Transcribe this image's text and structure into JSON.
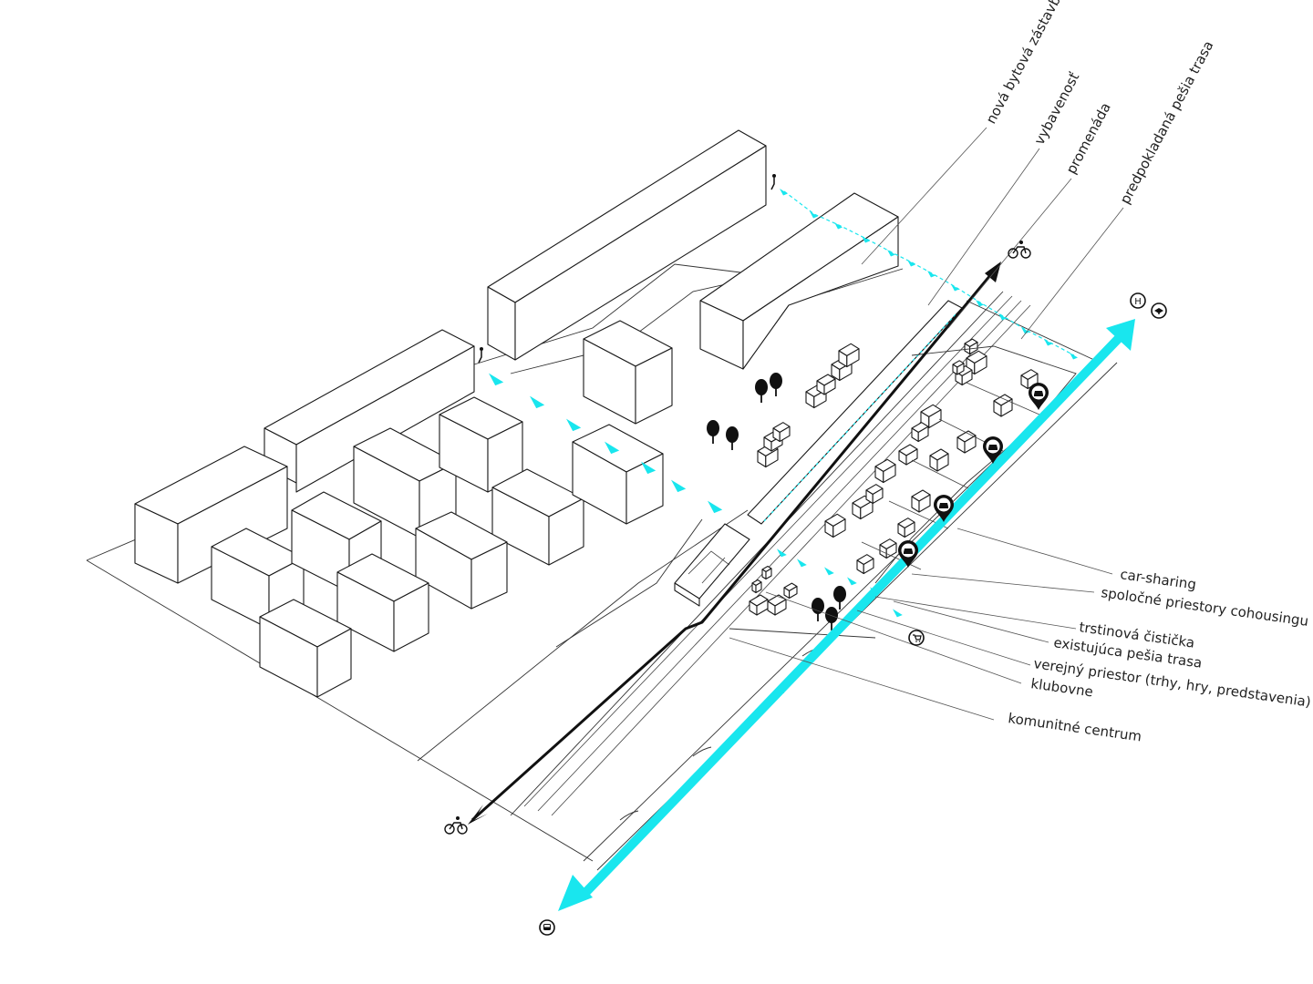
{
  "colors": {
    "accent_cyan": "#19e6ee",
    "line_black": "#111111",
    "background": "#ffffff"
  },
  "labels_top": [
    "nová bytová zástavba",
    "vybavenosť",
    "promenáda",
    "predpokladaná pešia trasa"
  ],
  "labels_right": [
    "car-sharing",
    "spoločné priestory cohousingu",
    "trstinová čistička",
    "existujúca pešia trasa",
    "verejný priestor (trhy, hry, predstavenia)",
    "klubovne",
    "komunitné centrum"
  ],
  "icons": {
    "bus": "bus-icon",
    "bicycle": "bicycle-icon",
    "pedestrian": "pedestrian-icon",
    "hospital": "hospital-icon",
    "school": "school-icon",
    "shop": "shopping-cart-icon",
    "car_sharing": "car-pin-icon"
  },
  "icon_glyphs": {
    "hospital": "H"
  }
}
